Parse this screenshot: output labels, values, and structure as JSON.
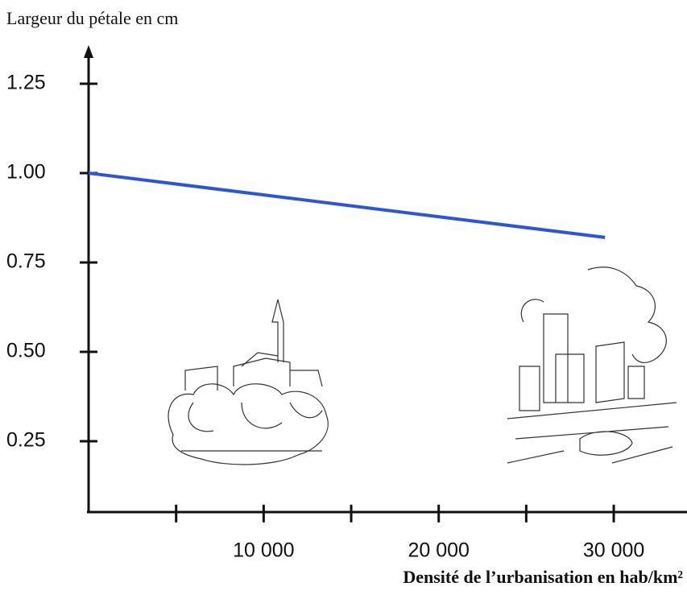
{
  "chart_data": {
    "type": "line",
    "y_label": "Largeur du pétale en cm",
    "x_label": "Densité de l’urbanisation en hab/km²",
    "x": [
      0,
      29500
    ],
    "series": [
      {
        "color": "#2a55e0",
        "values": [
          1.0,
          0.82
        ]
      }
    ],
    "xlim": [
      0,
      34000
    ],
    "ylim": [
      0.05,
      1.35
    ],
    "xticks": [
      {
        "value": 10000,
        "label": "10 000"
      },
      {
        "value": 20000,
        "label": "20 000"
      },
      {
        "value": 30000,
        "label": "30 000"
      }
    ],
    "xminor_ticks": [
      5000,
      15000,
      25000
    ],
    "yticks": [
      0.25,
      {
        "value": 0.5,
        "label": "0.50"
      },
      0.75,
      {
        "value": 1,
        "label": "1.00"
      },
      1.25
    ]
  }
}
